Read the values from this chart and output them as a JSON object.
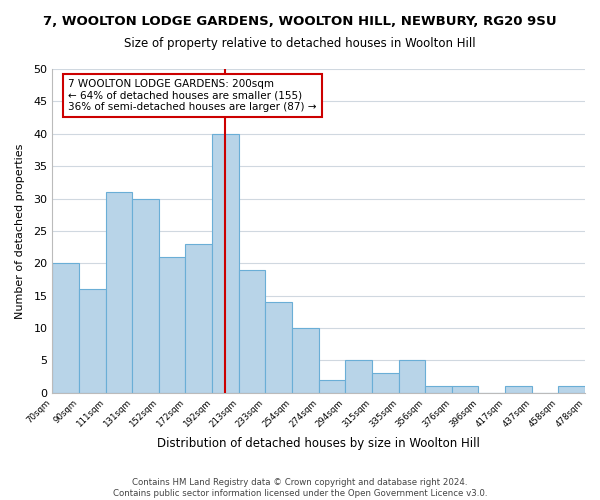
{
  "title": "7, WOOLTON LODGE GARDENS, WOOLTON HILL, NEWBURY, RG20 9SU",
  "subtitle": "Size of property relative to detached houses in Woolton Hill",
  "xlabel": "Distribution of detached houses by size in Woolton Hill",
  "ylabel": "Number of detached properties",
  "bin_labels": [
    "70sqm",
    "90sqm",
    "111sqm",
    "131sqm",
    "152sqm",
    "172sqm",
    "192sqm",
    "213sqm",
    "233sqm",
    "254sqm",
    "274sqm",
    "294sqm",
    "315sqm",
    "335sqm",
    "356sqm",
    "376sqm",
    "396sqm",
    "417sqm",
    "437sqm",
    "458sqm",
    "478sqm"
  ],
  "bar_heights": [
    20,
    16,
    31,
    30,
    21,
    23,
    40,
    19,
    14,
    10,
    2,
    5,
    3,
    5,
    1,
    1,
    0,
    1,
    0,
    1
  ],
  "bar_color": "#b8d4e8",
  "bar_edge_color": "#6aaed6",
  "vline_x": 6.5,
  "vline_color": "#cc0000",
  "ylim": [
    0,
    50
  ],
  "yticks": [
    0,
    5,
    10,
    15,
    20,
    25,
    30,
    35,
    40,
    45,
    50
  ],
  "annotation_lines": [
    "7 WOOLTON LODGE GARDENS: 200sqm",
    "← 64% of detached houses are smaller (155)",
    "36% of semi-detached houses are larger (87) →"
  ],
  "footer_lines": [
    "Contains HM Land Registry data © Crown copyright and database right 2024.",
    "Contains public sector information licensed under the Open Government Licence v3.0."
  ],
  "background_color": "#ffffff",
  "grid_color": "#d0d8e0"
}
